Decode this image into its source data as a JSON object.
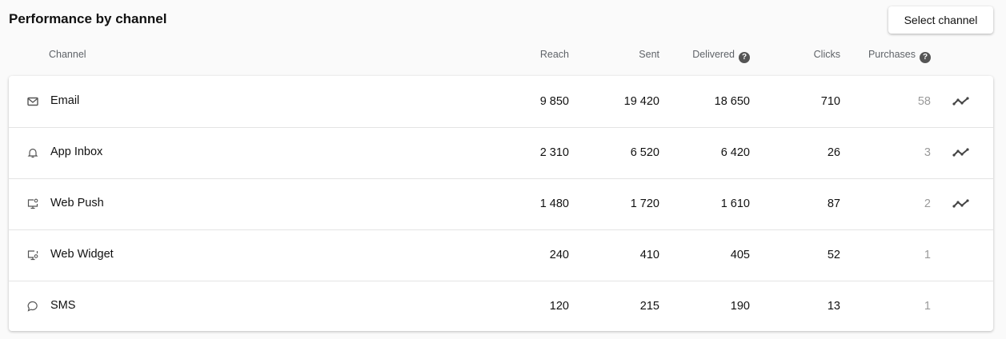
{
  "title": "Performance by channel",
  "select_button": "Select channel",
  "columns": {
    "channel": "Channel",
    "reach": "Reach",
    "sent": "Sent",
    "delivered": "Delivered",
    "clicks": "Clicks",
    "purchases": "Purchases"
  },
  "help_icon": "?",
  "rows": [
    {
      "icon": "mail-icon",
      "name": "Email",
      "reach": "9 850",
      "sent": "19 420",
      "delivered": "18 650",
      "clicks": "710",
      "purchases": "58",
      "trend": true
    },
    {
      "icon": "bell-icon",
      "name": "App Inbox",
      "reach": "2 310",
      "sent": "6 520",
      "delivered": "6 420",
      "clicks": "26",
      "purchases": "3",
      "trend": true
    },
    {
      "icon": "monitor-push-icon",
      "name": "Web Push",
      "reach": "1 480",
      "sent": "1 720",
      "delivered": "1 610",
      "clicks": "87",
      "purchases": "2",
      "trend": true
    },
    {
      "icon": "monitor-widget-icon",
      "name": "Web Widget",
      "reach": "240",
      "sent": "410",
      "delivered": "405",
      "clicks": "52",
      "purchases": "1",
      "trend": false
    },
    {
      "icon": "chat-bubble-icon",
      "name": "SMS",
      "reach": "120",
      "sent": "215",
      "delivered": "190",
      "clicks": "13",
      "purchases": "1",
      "trend": false
    }
  ]
}
